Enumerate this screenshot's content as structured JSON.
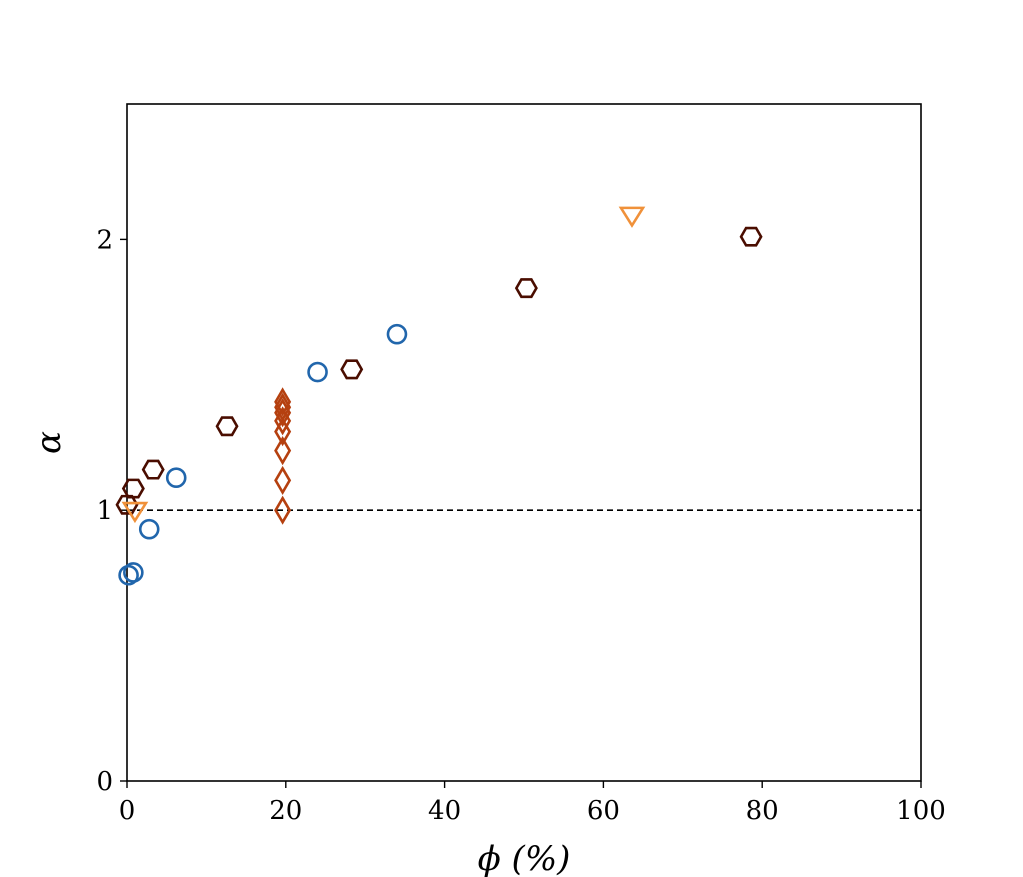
{
  "chart_data": {
    "type": "scatter",
    "title": "",
    "xlabel": "ϕ (%)",
    "ylabel": "α",
    "xlim": [
      0,
      100
    ],
    "ylim": [
      0,
      2.5
    ],
    "xticks": [
      0,
      20,
      40,
      60,
      80,
      100
    ],
    "yticks": [
      0,
      1,
      2
    ],
    "grid": false,
    "reference_line": {
      "y": 1,
      "style": "dashed",
      "color": "#000000"
    },
    "series": [
      {
        "marker": "circle",
        "color": "#2166ac",
        "points": [
          {
            "x": 0.2,
            "y": 0.76
          },
          {
            "x": 0.8,
            "y": 0.77
          },
          {
            "x": 2.8,
            "y": 0.93
          },
          {
            "x": 6.2,
            "y": 1.12
          },
          {
            "x": 24.0,
            "y": 1.51
          },
          {
            "x": 34.0,
            "y": 1.65
          }
        ]
      },
      {
        "marker": "hexagon",
        "color": "#4a0d00",
        "points": [
          {
            "x": 0.0,
            "y": 1.02
          },
          {
            "x": 0.8,
            "y": 1.08
          },
          {
            "x": 3.3,
            "y": 1.15
          },
          {
            "x": 12.6,
            "y": 1.31
          },
          {
            "x": 28.3,
            "y": 1.52
          },
          {
            "x": 50.3,
            "y": 1.82
          },
          {
            "x": 78.6,
            "y": 2.01
          }
        ]
      },
      {
        "marker": "triangle-down",
        "color": "#f0913a",
        "points": [
          {
            "x": 1.0,
            "y": 1.0
          },
          {
            "x": 63.6,
            "y": 2.09
          }
        ]
      },
      {
        "marker": "diamond",
        "color": "#b5400f",
        "points": [
          {
            "x": 19.6,
            "y": 1.0
          },
          {
            "x": 19.6,
            "y": 1.11
          },
          {
            "x": 19.6,
            "y": 1.22
          },
          {
            "x": 19.6,
            "y": 1.29
          },
          {
            "x": 19.6,
            "y": 1.33
          },
          {
            "x": 19.6,
            "y": 1.36
          },
          {
            "x": 19.6,
            "y": 1.38
          },
          {
            "x": 19.6,
            "y": 1.4
          }
        ]
      }
    ]
  }
}
